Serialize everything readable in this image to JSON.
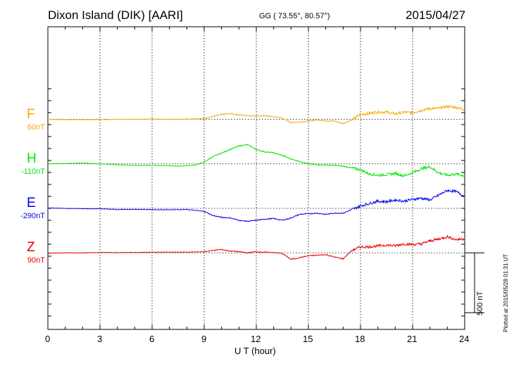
{
  "header": {
    "station": "Dixon Island (DIK)  [AARI]",
    "coords": "GG ( 73.55°,  80.57°)",
    "date": "2015/04/27"
  },
  "plotted_note": "Plotted at 2015/05/28 01:31  UT",
  "scale_bar_label": "500 nT",
  "chart_data": {
    "type": "line",
    "title": "Dixon Island (DIK)  [AARI]",
    "xlabel": "U T (hour)",
    "ylabel": "",
    "xlim": [
      0,
      24
    ],
    "x_ticks": [
      "0",
      "3",
      "6",
      "9",
      "12",
      "15",
      "18",
      "21",
      "24"
    ],
    "ylim_nT": [
      -950,
      1080
    ],
    "grid": true,
    "scale_bar_nT": 500,
    "series": [
      {
        "name": "F",
        "baseline_label": "60nT",
        "offset_nT": 744,
        "color": "#f5a800",
        "x": [
          0,
          1,
          2,
          3,
          4,
          5,
          6,
          7,
          8,
          9,
          9.5,
          10,
          10.5,
          11,
          11.5,
          12,
          12.5,
          13,
          13.5,
          14,
          14.5,
          15,
          15.5,
          16,
          16.5,
          17,
          17.5,
          18,
          18.5,
          19,
          19.5,
          20,
          20.5,
          21,
          21.5,
          22,
          22.5,
          23,
          23.5,
          24
        ],
        "y": [
          0,
          -3,
          -3,
          -3,
          0,
          0,
          3,
          0,
          3,
          6,
          25,
          40,
          47,
          37,
          31,
          28,
          30,
          22,
          10,
          -28,
          -22,
          -15,
          -5,
          -12,
          -15,
          -35,
          -5,
          40,
          50,
          62,
          60,
          45,
          60,
          55,
          75,
          90,
          92,
          108,
          100,
          82
        ]
      },
      {
        "name": "H",
        "baseline_label": "-110nT",
        "offset_nT": 372,
        "color": "#00e400",
        "x": [
          0,
          1,
          2,
          3,
          4,
          5,
          6,
          7,
          7.5,
          8,
          8.5,
          9,
          9.5,
          10,
          10.5,
          11,
          11.5,
          12,
          12.5,
          13,
          13.5,
          14,
          14.5,
          15,
          15.5,
          16,
          16.5,
          17,
          17.5,
          18,
          18.5,
          19,
          19.5,
          20,
          20.5,
          21,
          21.5,
          22,
          22.5,
          23,
          23.5,
          24
        ],
        "y": [
          0,
          3,
          6,
          0,
          -8,
          -12,
          -12,
          -15,
          -20,
          -15,
          -10,
          15,
          60,
          90,
          120,
          150,
          160,
          120,
          100,
          92,
          70,
          40,
          20,
          0,
          -8,
          -10,
          -12,
          -20,
          -35,
          -50,
          -85,
          -95,
          -90,
          -80,
          -100,
          -75,
          -40,
          -25,
          -75,
          -95,
          -85,
          -100
        ]
      },
      {
        "name": "E",
        "baseline_label": "-290nT",
        "offset_nT": 0,
        "color": "#0000e6",
        "x": [
          0,
          1,
          2,
          3,
          4,
          5,
          6,
          7,
          8,
          9,
          9.5,
          10,
          10.5,
          11,
          11.5,
          12,
          12.5,
          13,
          13.5,
          14,
          14.5,
          15,
          15.5,
          16,
          16.5,
          17,
          17.5,
          18,
          18.5,
          19,
          19.5,
          20,
          20.5,
          21,
          21.5,
          22,
          22.5,
          23,
          23.5,
          24
        ],
        "y": [
          3,
          0,
          -3,
          -3,
          -10,
          -8,
          -10,
          -12,
          -10,
          -25,
          -60,
          -75,
          -80,
          -100,
          -108,
          -100,
          -90,
          -85,
          -100,
          -80,
          -50,
          -45,
          -40,
          -50,
          -40,
          -40,
          -10,
          20,
          40,
          60,
          55,
          70,
          60,
          75,
          85,
          70,
          110,
          150,
          140,
          100
        ]
      },
      {
        "name": "Z",
        "baseline_label": "90nT",
        "offset_nT": -372,
        "color": "#e60000",
        "x": [
          0,
          1,
          2,
          3,
          4,
          5,
          6,
          7,
          8,
          9,
          9.5,
          10,
          10.5,
          11,
          11.5,
          12,
          12.5,
          13,
          13.5,
          14,
          14.5,
          15,
          15.5,
          16,
          16.5,
          17,
          17.5,
          18,
          18.5,
          19,
          19.5,
          20,
          20.5,
          21,
          21.5,
          22,
          22.5,
          23,
          23.5,
          24
        ],
        "y": [
          -3,
          0,
          0,
          3,
          3,
          3,
          6,
          6,
          6,
          10,
          20,
          28,
          15,
          10,
          0,
          10,
          5,
          3,
          -5,
          -55,
          -40,
          -25,
          -20,
          -15,
          -35,
          -50,
          20,
          50,
          50,
          58,
          65,
          60,
          75,
          70,
          75,
          100,
          115,
          135,
          110,
          118
        ]
      }
    ]
  }
}
